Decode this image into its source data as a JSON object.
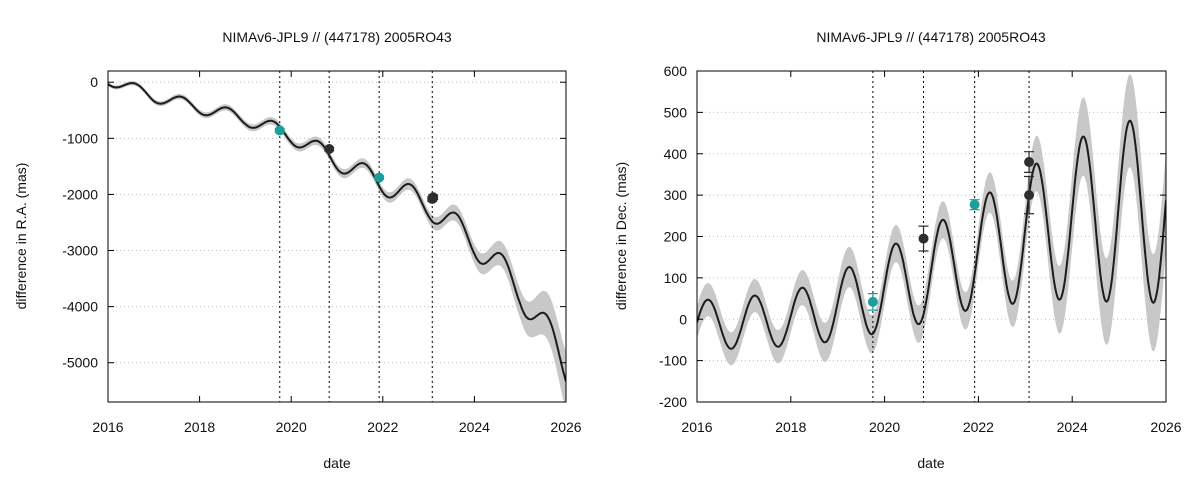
{
  "chart_data": [
    {
      "type": "line",
      "title": "NIMAv6-JPL9 // (447178) 2005RO43",
      "xlabel": "date",
      "ylabel": "difference in R.A. (mas)",
      "xlim": [
        2016,
        2026
      ],
      "ylim": [
        -5700,
        200
      ],
      "xticks": [
        2016,
        2018,
        2020,
        2022,
        2024,
        2026
      ],
      "xtick_labels": [
        "2016",
        "2018",
        "2020",
        "2022",
        "2024",
        "2026"
      ],
      "yticks": [
        0,
        -1000,
        -2000,
        -3000,
        -4000,
        -5000
      ],
      "ytick_labels": [
        "0",
        "-1000",
        "-2000",
        "-3000",
        "-4000",
        "-5000"
      ],
      "vlines": [
        2019.75,
        2020.83,
        2021.92,
        2023.08
      ],
      "curve": {
        "trend": [
          [
            2016,
            50
          ],
          [
            2017,
            -250
          ],
          [
            2018,
            -450
          ],
          [
            2019,
            -650
          ],
          [
            2020,
            -950
          ],
          [
            2021,
            -1400
          ],
          [
            2022,
            -1800
          ],
          [
            2023,
            -2200
          ],
          [
            2024,
            -2850
          ],
          [
            2025,
            -3700
          ],
          [
            2026,
            -5050
          ]
        ],
        "amp": [
          [
            2016,
            100
          ],
          [
            2019,
            120
          ],
          [
            2022,
            200
          ],
          [
            2024,
            260
          ],
          [
            2026,
            350
          ]
        ],
        "phase": -0.35,
        "band": [
          [
            2016,
            35
          ],
          [
            2018,
            50
          ],
          [
            2020,
            70
          ],
          [
            2022,
            90
          ],
          [
            2023,
            110
          ],
          [
            2024,
            170
          ],
          [
            2025,
            260
          ],
          [
            2026,
            520
          ]
        ]
      },
      "points": [
        {
          "x": 2019.75,
          "y": -860,
          "err": 30,
          "group": "teal"
        },
        {
          "x": 2020.83,
          "y": -1190,
          "err": 30,
          "group": "dark"
        },
        {
          "x": 2021.92,
          "y": -1700,
          "err": 30,
          "group": "teal"
        },
        {
          "x": 2023.08,
          "y": -2080,
          "err": 40,
          "group": "dark"
        },
        {
          "x": 2023.1,
          "y": -2050,
          "err": 40,
          "group": "dark"
        }
      ]
    },
    {
      "type": "line",
      "title": "NIMAv6-JPL9 // (447178) 2005RO43",
      "xlabel": "date",
      "ylabel": "difference in Dec. (mas)",
      "xlim": [
        2016,
        2026
      ],
      "ylim": [
        -200,
        600
      ],
      "xticks": [
        2016,
        2018,
        2020,
        2022,
        2024,
        2026
      ],
      "xtick_labels": [
        "2016",
        "2018",
        "2020",
        "2022",
        "2024",
        "2026"
      ],
      "yticks": [
        -200,
        -100,
        0,
        100,
        200,
        300,
        400,
        500,
        600
      ],
      "ytick_labels": [
        "-200",
        "-100",
        "0",
        "100",
        "200",
        "300",
        "400",
        "500",
        "600"
      ],
      "vlines": [
        2019.75,
        2020.83,
        2021.92,
        2023.08
      ],
      "curve": {
        "trend": [
          [
            2016,
            -15
          ],
          [
            2018,
            0
          ],
          [
            2019,
            30
          ],
          [
            2020,
            70
          ],
          [
            2021,
            110
          ],
          [
            2022,
            160
          ],
          [
            2023,
            200
          ],
          [
            2024,
            240
          ],
          [
            2025,
            260
          ],
          [
            2026,
            260
          ]
        ],
        "amp": [
          [
            2016,
            60
          ],
          [
            2018,
            65
          ],
          [
            2020,
            100
          ],
          [
            2022,
            130
          ],
          [
            2024,
            190
          ],
          [
            2025,
            220
          ],
          [
            2026,
            220
          ]
        ],
        "phase": 0.02,
        "band": [
          [
            2016,
            40
          ],
          [
            2018,
            40
          ],
          [
            2019,
            50
          ],
          [
            2020,
            45
          ],
          [
            2021,
            45
          ],
          [
            2022,
            45
          ],
          [
            2023,
            60
          ],
          [
            2024,
            90
          ],
          [
            2025,
            110
          ],
          [
            2026,
            120
          ]
        ]
      },
      "points": [
        {
          "x": 2019.75,
          "y": 42,
          "err": 20,
          "group": "teal"
        },
        {
          "x": 2020.83,
          "y": 195,
          "err": 30,
          "group": "dark"
        },
        {
          "x": 2021.92,
          "y": 277,
          "err": 12,
          "group": "teal"
        },
        {
          "x": 2023.08,
          "y": 380,
          "err": 25,
          "group": "dark"
        },
        {
          "x": 2023.08,
          "y": 300,
          "err": 45,
          "group": "dark"
        }
      ]
    }
  ],
  "colors": {
    "curve": "#1c1c1c",
    "band": "#c8c8c8",
    "teal": "#1e9e9a",
    "dark": "#2e2e2e",
    "grid": "#bdbdbd",
    "axis": "#000000"
  }
}
